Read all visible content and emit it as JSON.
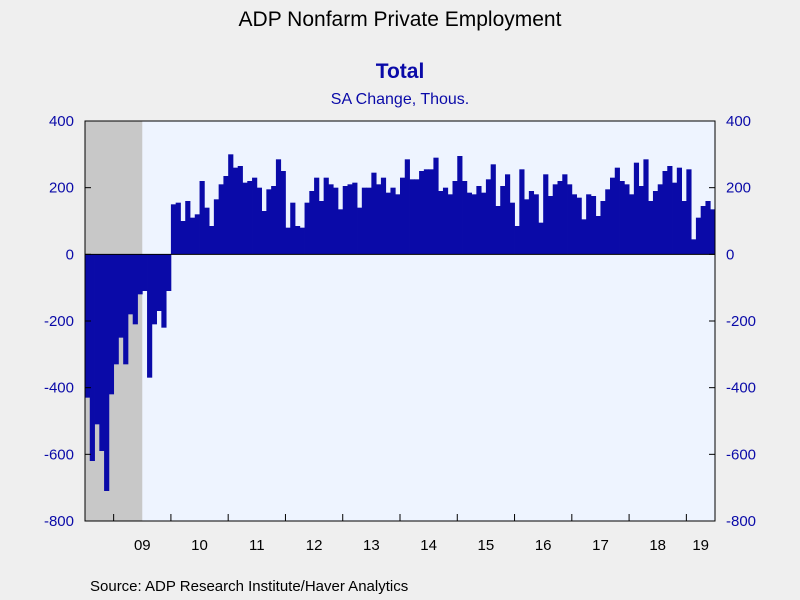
{
  "title": "ADP Nonfarm Private Employment",
  "subtitle": "Total",
  "unit": "SA Change, Thous.",
  "source": "Source:  ADP Research Institute/Haver Analytics",
  "colors": {
    "bar": "#0a0aa8",
    "recession": "#c8c8c8",
    "plot_bg": "#eef4ff",
    "page_bg": "#efefef"
  },
  "chart_data": {
    "type": "bar",
    "ylim": [
      -800,
      400
    ],
    "yticks": [
      400,
      200,
      0,
      -200,
      -400,
      -600,
      -800
    ],
    "ytick_labels": [
      "400",
      "200",
      "0",
      "-200",
      "-400",
      "-600",
      "-800"
    ],
    "x_start": "2008-07",
    "x_end": "2019-06",
    "xtick_labels": [
      "09",
      "10",
      "11",
      "12",
      "13",
      "14",
      "15",
      "16",
      "17",
      "18",
      "19"
    ],
    "recession_shading": {
      "start": "2008-07",
      "end": "2009-06"
    },
    "series": [
      {
        "values": [
          -430,
          -620,
          -510,
          -590,
          -710,
          -420,
          -330,
          -250,
          -330,
          -180,
          -210,
          -120,
          -110,
          -370,
          -210,
          -170,
          -220,
          -110,
          150,
          155,
          100,
          160,
          110,
          120,
          220,
          140,
          85,
          165,
          210,
          235,
          300,
          260,
          265,
          215,
          220,
          230,
          200,
          130,
          195,
          205,
          285,
          250,
          80,
          155,
          85,
          80,
          155,
          190,
          230,
          160,
          230,
          210,
          200,
          135,
          205,
          210,
          215,
          140,
          200,
          200,
          245,
          210,
          230,
          185,
          200,
          180,
          230,
          285,
          225,
          225,
          250,
          255,
          255,
          290,
          190,
          200,
          180,
          220,
          295,
          220,
          185,
          180,
          205,
          185,
          225,
          270,
          145,
          205,
          240,
          155,
          85,
          255,
          165,
          190,
          180,
          95,
          240,
          175,
          210,
          220,
          240,
          210,
          180,
          170,
          105,
          180,
          175,
          115,
          160,
          195,
          230,
          260,
          220,
          210,
          180,
          275,
          205,
          285,
          160,
          190,
          210,
          250,
          265,
          215,
          260,
          160,
          255,
          45,
          110,
          145,
          160,
          135
        ]
      }
    ]
  }
}
